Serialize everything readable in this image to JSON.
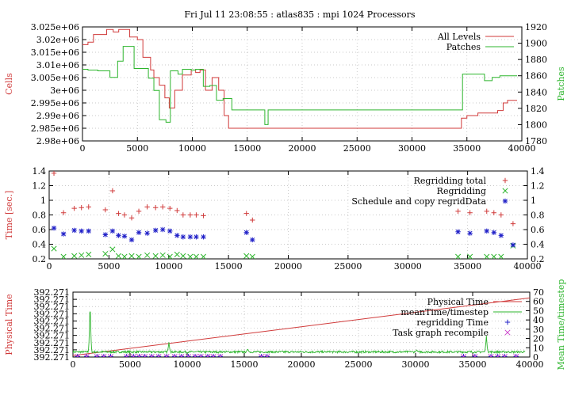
{
  "title": "Fri Jul 11 23:08:55 : atlas835 : mpi 1024 Processors",
  "colors": {
    "red": "#d03a3a",
    "green": "#2db52d",
    "blue": "#2020c8",
    "purple": "#cc44cc"
  },
  "chart_data": [
    {
      "type": "line",
      "title": "",
      "xlabel": "",
      "ylabel": "Cells",
      "y2label": "Patches",
      "xlim": [
        0,
        40000
      ],
      "ylim": [
        2980000,
        3025000
      ],
      "y2lim": [
        1780,
        1920
      ],
      "xticks": [
        0,
        5000,
        10000,
        15000,
        20000,
        25000,
        30000,
        35000,
        40000
      ],
      "yticks": [
        2980000,
        2985000,
        2990000,
        2995000,
        3000000,
        3005000,
        3010000,
        3015000,
        3020000,
        3025000
      ],
      "ytick_labels": [
        "2.98e+06",
        "2.985e+06",
        "2.99e+06",
        "2.995e+06",
        "3e+06",
        "3.005e+06",
        "3.01e+06",
        "3.015e+06",
        "3.02e+06",
        "3.025e+06"
      ],
      "y2ticks": [
        1780,
        1800,
        1820,
        1840,
        1860,
        1880,
        1900,
        1920
      ],
      "legend": "top-right",
      "grid": true,
      "series": [
        {
          "name": "All Levels",
          "color": "red",
          "axis": "y",
          "style": "step",
          "x": [
            0,
            500,
            1000,
            2200,
            2800,
            3300,
            4300,
            5000,
            5500,
            6200,
            6500,
            7000,
            7500,
            7900,
            8400,
            9100,
            9900,
            10300,
            10700,
            11200,
            11800,
            12400,
            12900,
            13300,
            16800,
            17400,
            34200,
            34500,
            35000,
            36000,
            37000,
            37800,
            38300,
            38700,
            39000
          ],
          "y": [
            3018000,
            3019000,
            3022000,
            3024000,
            3023000,
            3024000,
            3021000,
            3020000,
            3013000,
            3008000,
            3005000,
            3002000,
            2997000,
            2993000,
            3000000,
            3006000,
            3008000,
            3007000,
            3008000,
            3000000,
            3005000,
            3000000,
            2990000,
            2985000,
            2985000,
            2985000,
            2985000,
            2989000,
            2990000,
            2991000,
            2991000,
            2992000,
            2995000,
            2996000,
            2996000
          ]
        },
        {
          "name": "Patches",
          "color": "green",
          "axis": "y2",
          "style": "step",
          "x": [
            0,
            500,
            1400,
            2500,
            3200,
            3700,
            4700,
            5500,
            6000,
            6500,
            7000,
            7600,
            8000,
            8700,
            9100,
            9900,
            10300,
            11000,
            11600,
            12200,
            12800,
            13600,
            16600,
            16900,
            34200,
            34600,
            35800,
            36600,
            37300,
            38000,
            39000
          ],
          "y": [
            1868,
            1867,
            1866,
            1858,
            1878,
            1896,
            1869,
            1869,
            1857,
            1842,
            1806,
            1803,
            1866,
            1862,
            1868,
            1867,
            1868,
            1847,
            1848,
            1830,
            1832,
            1818,
            1800,
            1818,
            1818,
            1862,
            1862,
            1854,
            1858,
            1860,
            1860
          ]
        }
      ]
    },
    {
      "type": "scatter",
      "title": "",
      "xlabel": "",
      "ylabel": "Time [sec.]",
      "xlim": [
        0,
        40000
      ],
      "ylim": [
        0.2,
        1.4
      ],
      "xticks": [
        0,
        5000,
        10000,
        15000,
        20000,
        25000,
        30000,
        35000,
        40000
      ],
      "yticks": [
        0.2,
        0.4,
        0.6,
        0.8,
        1,
        1.2,
        1.4
      ],
      "ytick_labels": [
        "0.2",
        "0.4",
        "0.6",
        "0.8",
        "1",
        "1.2",
        "1.4"
      ],
      "legend": "top-right",
      "grid": true,
      "series": [
        {
          "name": "Regridding total",
          "color": "red",
          "marker": "plus",
          "x": [
            400,
            1200,
            2100,
            2700,
            3300,
            4700,
            5300,
            5800,
            6300,
            6900,
            7500,
            8200,
            8900,
            9500,
            10100,
            10700,
            11200,
            11800,
            12300,
            12900,
            16500,
            17000,
            34200,
            35200,
            36600,
            37200,
            37800,
            38800
          ],
          "y": [
            1.37,
            0.83,
            0.89,
            0.9,
            0.91,
            0.87,
            1.13,
            0.82,
            0.8,
            0.76,
            0.85,
            0.91,
            0.9,
            0.91,
            0.89,
            0.86,
            0.8,
            0.8,
            0.8,
            0.79,
            0.82,
            0.73,
            0.85,
            0.83,
            0.85,
            0.83,
            0.8,
            0.68
          ]
        },
        {
          "name": "Regridding",
          "color": "green",
          "marker": "x",
          "x": [
            400,
            1200,
            2100,
            2700,
            3300,
            4700,
            5300,
            5800,
            6300,
            6900,
            7500,
            8200,
            8900,
            9500,
            10100,
            10700,
            11200,
            11800,
            12300,
            12900,
            16500,
            17000,
            34200,
            35200,
            36600,
            37200,
            37800,
            38800
          ],
          "y": [
            0.34,
            0.23,
            0.24,
            0.25,
            0.26,
            0.27,
            0.33,
            0.24,
            0.23,
            0.24,
            0.23,
            0.25,
            0.24,
            0.25,
            0.23,
            0.26,
            0.24,
            0.23,
            0.23,
            0.23,
            0.24,
            0.23,
            0.23,
            0.23,
            0.23,
            0.23,
            0.23,
            0.38
          ]
        },
        {
          "name": "Schedule and copy regridData",
          "color": "blue",
          "marker": "star",
          "x": [
            400,
            1200,
            2100,
            2700,
            3300,
            4700,
            5300,
            5800,
            6300,
            6900,
            7500,
            8200,
            8900,
            9500,
            10100,
            10700,
            11200,
            11800,
            12300,
            12900,
            16500,
            17000,
            34200,
            35200,
            36600,
            37200,
            37800,
            38800
          ],
          "y": [
            0.62,
            0.54,
            0.59,
            0.58,
            0.58,
            0.53,
            0.58,
            0.52,
            0.51,
            0.46,
            0.56,
            0.55,
            0.59,
            0.6,
            0.58,
            0.52,
            0.5,
            0.5,
            0.5,
            0.5,
            0.56,
            0.46,
            0.57,
            0.55,
            0.58,
            0.56,
            0.52,
            0.39
          ]
        }
      ]
    },
    {
      "type": "line",
      "title": "",
      "xlabel": "",
      "ylabel": "Physical Time",
      "y2label": "Mean Time/timestep",
      "xlim": [
        0,
        40000
      ],
      "ylim": [
        0,
        9
      ],
      "y2lim": [
        0,
        70
      ],
      "xticks": [
        0,
        5000,
        10000,
        15000,
        20000,
        25000,
        30000,
        35000,
        40000
      ],
      "yticks": [
        0,
        1,
        2,
        3,
        4,
        5,
        6,
        7,
        8,
        9
      ],
      "ytick_labels": [
        "392.271",
        "392.271",
        "392.271",
        "392.271",
        "392.271",
        "392.271",
        "392.271",
        "392.271",
        "392.271",
        "392.271"
      ],
      "y2ticks": [
        0,
        10,
        20,
        30,
        40,
        50,
        60,
        70
      ],
      "legend": "top-right",
      "grid": true,
      "series": [
        {
          "name": "Physical Time",
          "color": "red",
          "axis": "y",
          "style": "line",
          "x": [
            0,
            40000
          ],
          "y": [
            0.2,
            8.2
          ]
        },
        {
          "name": "meanTime/timestep",
          "color": "green",
          "axis": "y2",
          "style": "noisy-line",
          "base": 5.5,
          "spikes": [
            [
              1500,
              60
            ],
            [
              8400,
              16
            ],
            [
              15300,
              9
            ],
            [
              22400,
              3
            ],
            [
              29500,
              6
            ],
            [
              30100,
              8
            ],
            [
              36200,
              23
            ],
            [
              13000,
              3
            ]
          ]
        },
        {
          "name": "regridding Time",
          "color": "blue",
          "marker": "plus",
          "axis": "y2",
          "x": [
            400,
            1200,
            2100,
            2700,
            3300,
            4700,
            5300,
            5800,
            6300,
            6900,
            7500,
            8200,
            8900,
            9500,
            10100,
            10700,
            11200,
            11800,
            12300,
            12900,
            16500,
            17000,
            34200,
            35200,
            36600,
            37200,
            37800,
            38800
          ],
          "y": [
            0.6,
            0.6,
            0.6,
            0.6,
            0.6,
            0.6,
            0.6,
            0.6,
            0.6,
            0.6,
            0.6,
            0.6,
            0.6,
            0.6,
            0.6,
            0.6,
            0.6,
            0.6,
            0.6,
            0.6,
            0.6,
            0.6,
            0.6,
            0.6,
            0.6,
            0.6,
            0.6,
            0.6
          ]
        },
        {
          "name": "Task graph recompile",
          "color": "purple",
          "marker": "x",
          "axis": "y2",
          "x": [
            400,
            1200,
            2100,
            2700,
            3300,
            4700,
            5300,
            5800,
            6300,
            6900,
            7500,
            8200,
            8900,
            9500,
            10100,
            10700,
            11200,
            11800,
            12300,
            12900,
            16500,
            17000,
            34200,
            35200,
            36600,
            37200,
            37800,
            38800
          ],
          "y": [
            0.4,
            0.4,
            0.4,
            0.4,
            0.4,
            0.4,
            0.4,
            0.4,
            0.4,
            0.4,
            0.4,
            0.4,
            0.4,
            0.4,
            0.4,
            0.4,
            0.4,
            0.4,
            0.4,
            0.4,
            0.4,
            0.4,
            0.4,
            0.4,
            0.4,
            0.4,
            0.4,
            0.4
          ]
        }
      ]
    }
  ]
}
